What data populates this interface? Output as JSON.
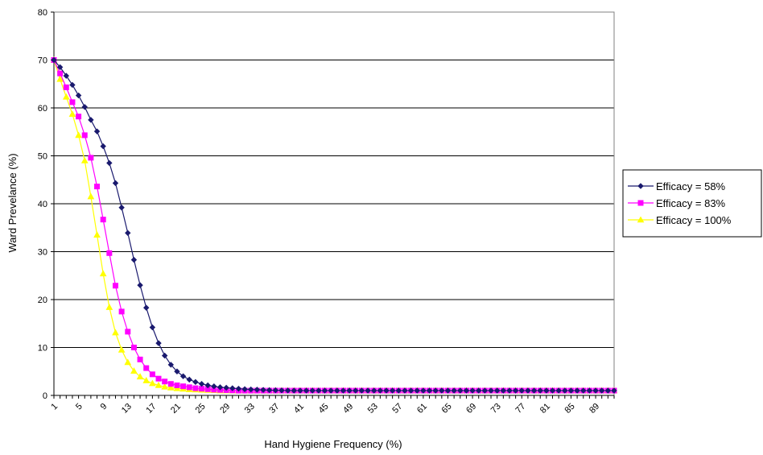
{
  "chart_data": {
    "type": "line",
    "xlabel": "Hand Hygiene Frequency (%)",
    "ylabel": "Ward Prevelance (%)",
    "ylim": [
      0,
      80
    ],
    "yticks": [
      0,
      10,
      20,
      30,
      40,
      50,
      60,
      70,
      80
    ],
    "xlim": [
      1,
      92
    ],
    "xticks": [
      1,
      5,
      9,
      13,
      17,
      21,
      25,
      29,
      33,
      37,
      41,
      45,
      49,
      53,
      57,
      61,
      65,
      69,
      73,
      77,
      81,
      85,
      89
    ],
    "grid": "horizontal",
    "legend_position": "right",
    "x": [
      1,
      2,
      3,
      4,
      5,
      6,
      7,
      8,
      9,
      10,
      11,
      12,
      13,
      14,
      15,
      16,
      17,
      18,
      19,
      20,
      21,
      22,
      23,
      24,
      25,
      26,
      27,
      28,
      29,
      30,
      31,
      32,
      33,
      34,
      35,
      36,
      37,
      38,
      39,
      40,
      41,
      42,
      43,
      44,
      45,
      46,
      47,
      48,
      49,
      50,
      51,
      52,
      53,
      54,
      55,
      56,
      57,
      58,
      59,
      60,
      61,
      62,
      63,
      64,
      65,
      66,
      67,
      68,
      69,
      70,
      71,
      72,
      73,
      74,
      75,
      76,
      77,
      78,
      79,
      80,
      81,
      82,
      83,
      84,
      85,
      86,
      87,
      88,
      89,
      90,
      91,
      92
    ],
    "series": [
      {
        "name": "Efficacy = 58%",
        "color": "#1a1a6e",
        "marker": "diamond",
        "values": [
          70,
          68.5,
          66.7,
          64.8,
          62.6,
          60.2,
          57.5,
          55.1,
          52,
          48.5,
          44.3,
          39.2,
          33.9,
          28.3,
          23,
          18.3,
          14.2,
          10.9,
          8.3,
          6.4,
          5,
          4,
          3.3,
          2.8,
          2.4,
          2.1,
          1.9,
          1.7,
          1.6,
          1.5,
          1.4,
          1.3,
          1.25,
          1.2,
          1.15,
          1.1,
          1.07,
          1.04,
          1.02,
          1,
          1,
          1,
          1,
          1,
          1,
          1,
          1,
          1,
          1,
          1,
          1,
          1,
          1,
          1,
          1,
          1,
          1,
          1,
          1,
          1,
          1,
          1,
          1,
          1,
          1,
          1,
          1,
          1,
          1,
          1,
          1,
          1,
          1,
          1,
          1,
          1,
          1,
          1,
          1,
          1,
          1,
          1,
          1,
          1,
          1,
          1,
          1,
          1,
          1,
          1,
          1,
          1
        ]
      },
      {
        "name": "Efficacy = 83%",
        "color": "#ff00ff",
        "marker": "square",
        "values": [
          70,
          67.2,
          64.3,
          61.2,
          58.2,
          54.3,
          49.6,
          43.6,
          36.7,
          29.7,
          22.9,
          17.5,
          13.3,
          10,
          7.5,
          5.7,
          4.4,
          3.5,
          2.9,
          2.4,
          2.1,
          1.9,
          1.7,
          1.5,
          1.4,
          1.3,
          1.2,
          1.15,
          1.1,
          1.05,
          1,
          1,
          1,
          1,
          1,
          1,
          1,
          1,
          1,
          1,
          1,
          1,
          1,
          1,
          1,
          1,
          1,
          1,
          1,
          1,
          1,
          1,
          1,
          1,
          1,
          1,
          1,
          1,
          1,
          1,
          1,
          1,
          1,
          1,
          1,
          1,
          1,
          1,
          1,
          1,
          1,
          1,
          1,
          1,
          1,
          1,
          1,
          1,
          1,
          1,
          1,
          1,
          1,
          1,
          1,
          1,
          1,
          1,
          1,
          1,
          1,
          1
        ]
      },
      {
        "name": "Efficacy = 100%",
        "color": "#ffff00",
        "marker": "triangle",
        "values": [
          70,
          66,
          62.3,
          58.7,
          54.3,
          49,
          41.5,
          33.5,
          25.4,
          18.4,
          13.1,
          9.5,
          6.9,
          5.1,
          3.9,
          3.1,
          2.5,
          2.1,
          1.8,
          1.6,
          1.45,
          1.35,
          1.25,
          1.2,
          1.15,
          1.1,
          1.05,
          1,
          1,
          1,
          1,
          1,
          1,
          1,
          1,
          1,
          1,
          1,
          1,
          1,
          1,
          1,
          1,
          1,
          1,
          1,
          1,
          1,
          1,
          1,
          1,
          1,
          1,
          1,
          1,
          1,
          1,
          1,
          1,
          1,
          1,
          1,
          1,
          1,
          1,
          1,
          1,
          1,
          1,
          1,
          1,
          1,
          1,
          1,
          1,
          1,
          1,
          1,
          1,
          1,
          1,
          1,
          1,
          1,
          1,
          1,
          1,
          1,
          1,
          1,
          1,
          1
        ]
      }
    ]
  }
}
